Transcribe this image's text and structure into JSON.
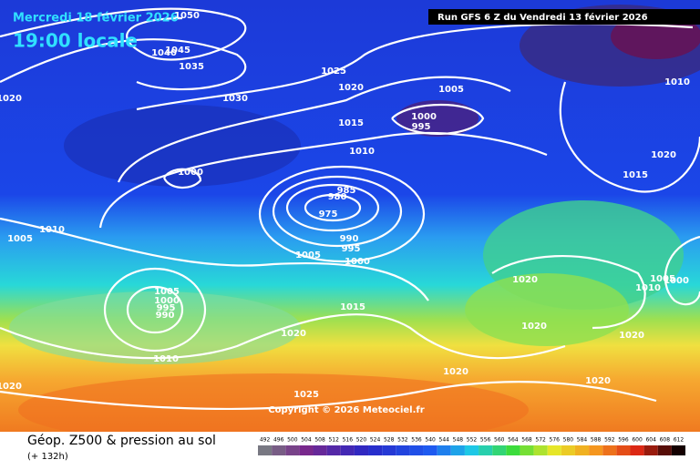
{
  "header": {
    "date": "Mercredi 18 février 2026",
    "time": "19:00 locale",
    "run": "Run GFS 6 Z du Vendredi 13 février 2026"
  },
  "map": {
    "isobar_labels": [
      1050,
      1045,
      1040,
      1035,
      1030,
      1025,
      1020,
      1015,
      1010,
      1005,
      1000,
      995,
      1020,
      1000,
      1010,
      1005,
      985,
      980,
      975,
      990,
      995,
      1000,
      1005,
      1015,
      1005,
      1000,
      995,
      990,
      1020,
      1010,
      1020,
      1025,
      1020,
      1020,
      1020,
      1020,
      1020,
      1015,
      1020,
      1010,
      1005,
      1010,
      1000
    ],
    "copyright": "Copyright © 2026 Meteociel.fr"
  },
  "footer": {
    "title": "Géop. Z500 & pression au sol",
    "lead": "(+ 132h)"
  },
  "legend": {
    "values": [
      492,
      496,
      500,
      504,
      508,
      512,
      516,
      520,
      524,
      528,
      532,
      536,
      540,
      544,
      548,
      552,
      556,
      560,
      564,
      568,
      572,
      576,
      580,
      584,
      588,
      592,
      596,
      600,
      604,
      608,
      612
    ]
  }
}
